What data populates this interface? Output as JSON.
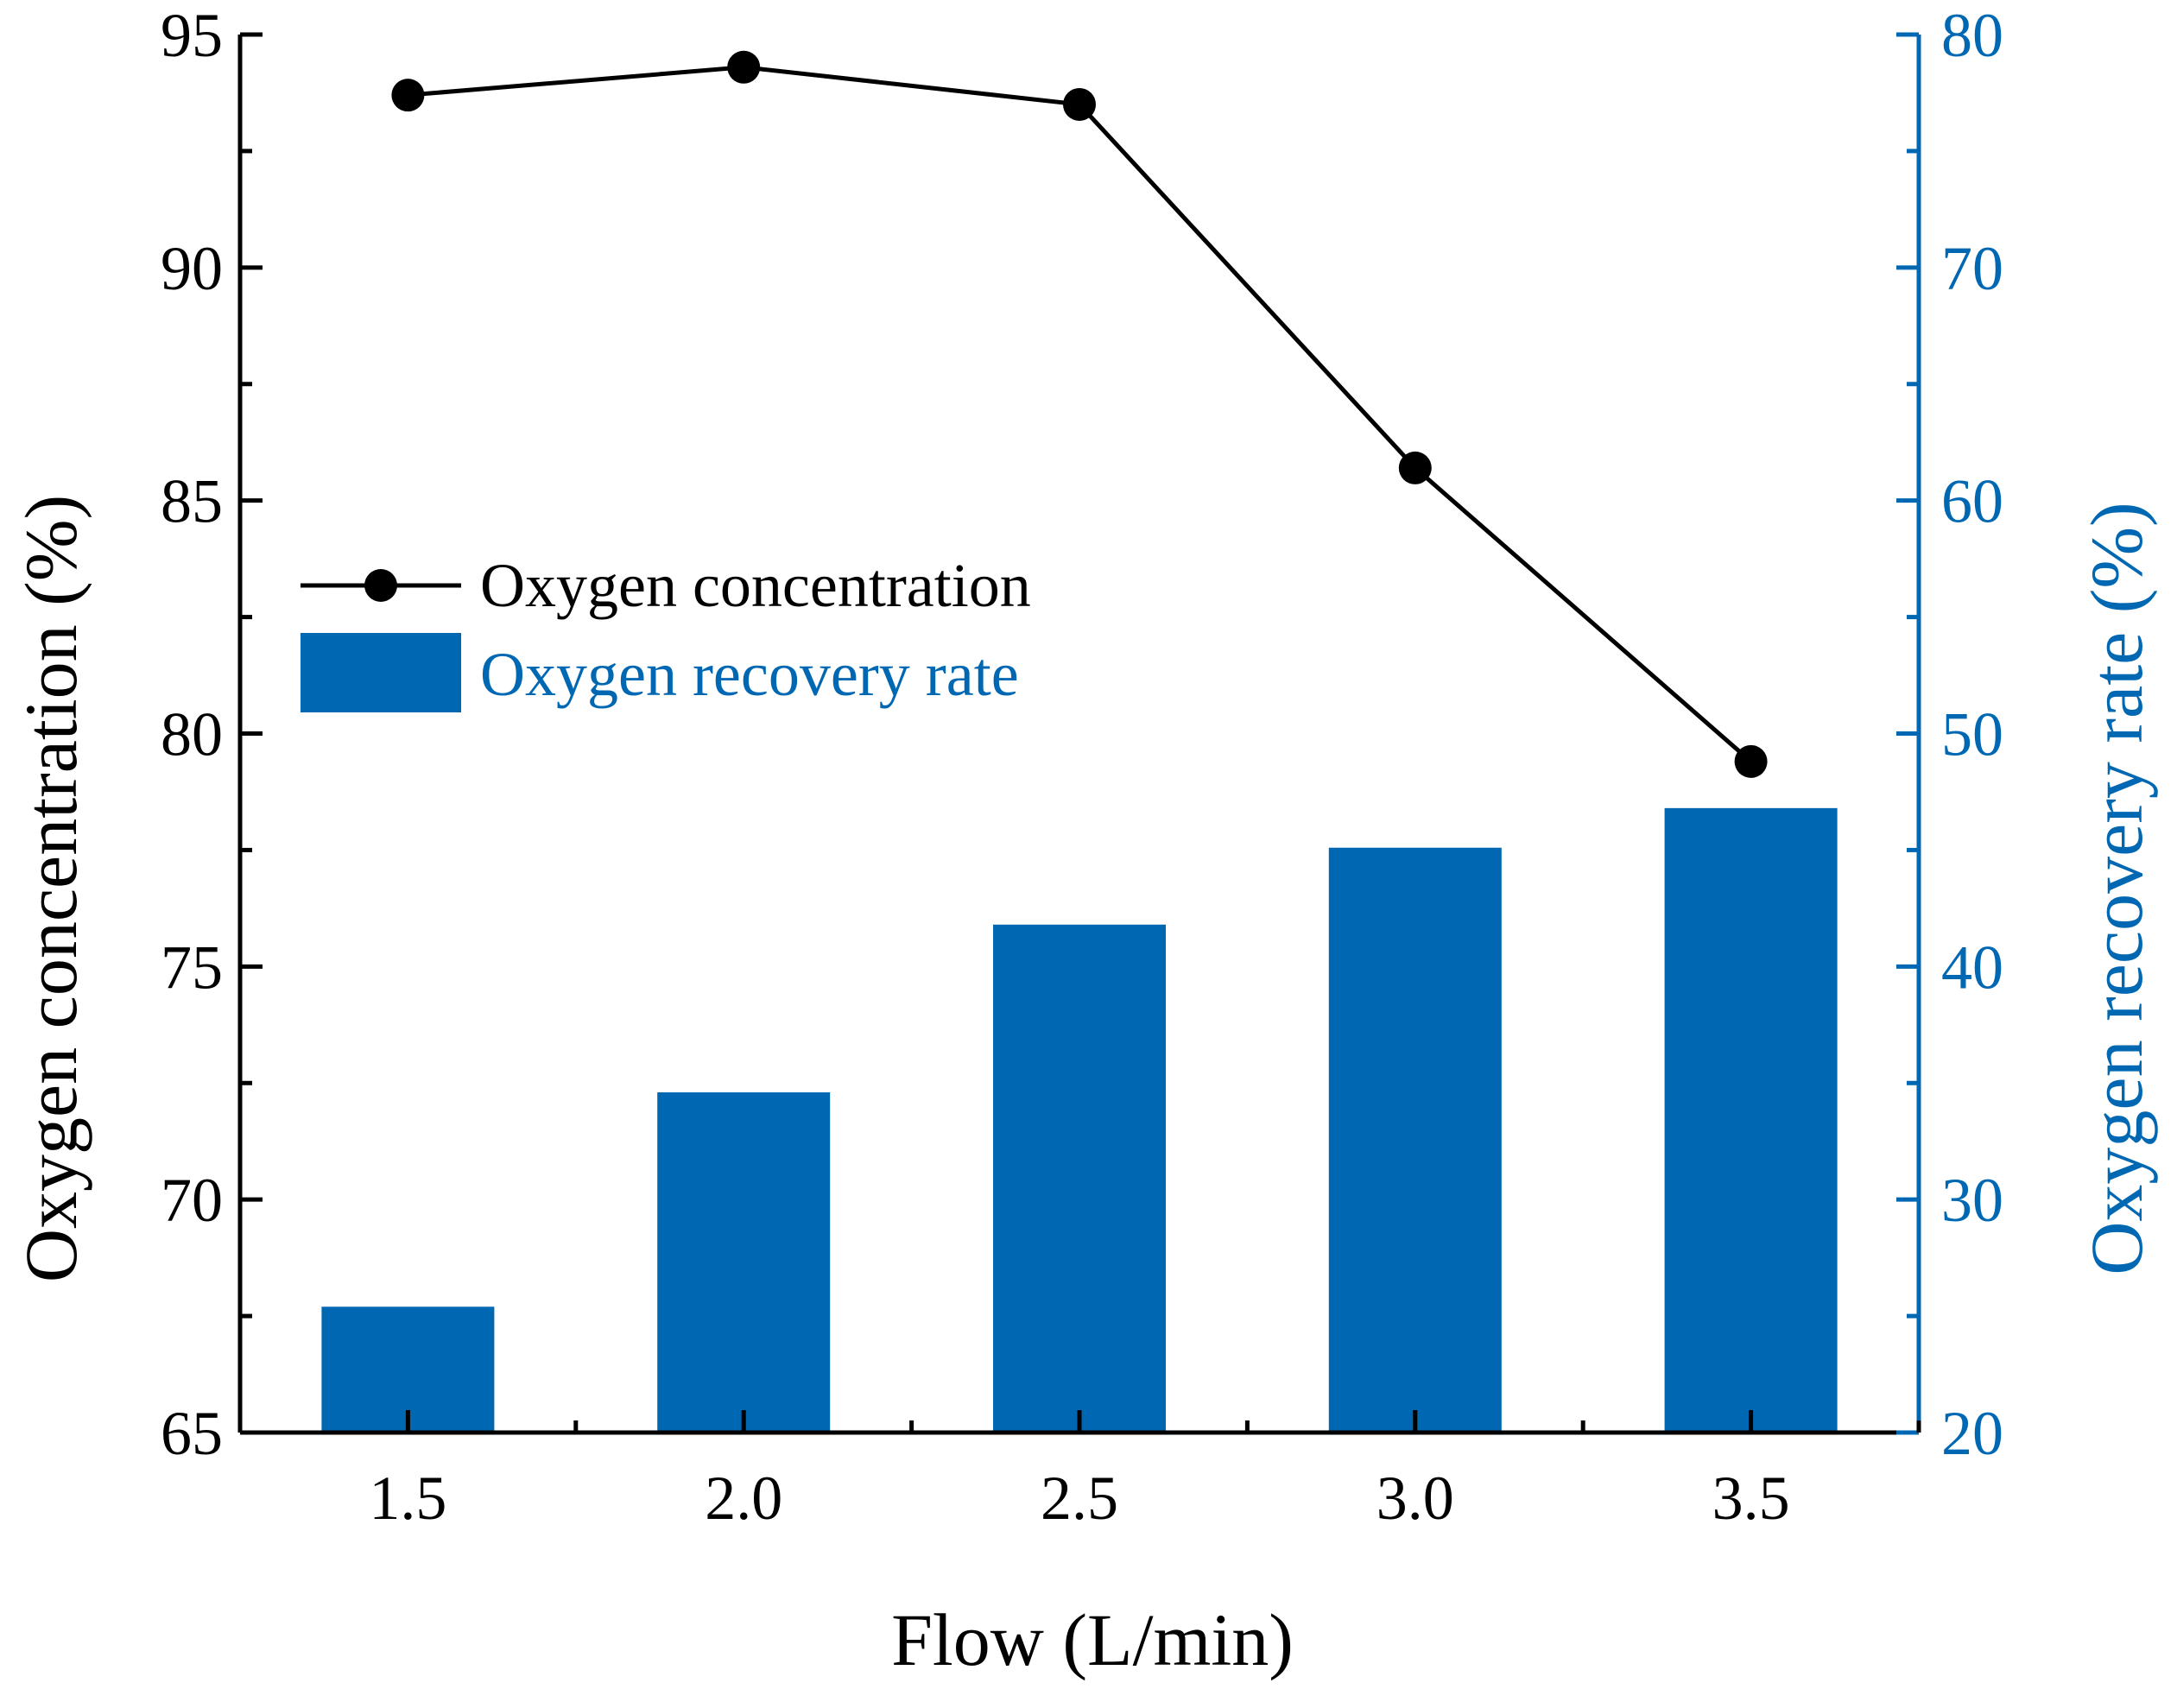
{
  "chart_data": {
    "type": "bar+line",
    "xlabel": "Flow (L/min)",
    "categories": [
      "1.5",
      "2.0",
      "2.5",
      "3.0",
      "3.5"
    ],
    "x_values": [
      1.5,
      2.0,
      2.5,
      3.0,
      3.5
    ],
    "xlim": [
      1.25,
      3.75
    ],
    "left_axis": {
      "label": "Oxygen concentration (%)",
      "ylim": [
        65,
        95
      ],
      "ticks": [
        "65",
        "70",
        "75",
        "80",
        "85",
        "90",
        "95"
      ]
    },
    "right_axis": {
      "label": "Oxygen recovery rate (%)",
      "ylim": [
        20,
        80
      ],
      "ticks": [
        "20",
        "30",
        "40",
        "50",
        "60",
        "70",
        "80"
      ]
    },
    "series": [
      {
        "name": "Oxygen concentration",
        "kind": "line",
        "axis": "left",
        "color": "#000000",
        "values": [
          93.7,
          94.3,
          93.5,
          85.7,
          79.4
        ]
      },
      {
        "name": "Oxygen recovery rate",
        "kind": "bar",
        "axis": "right",
        "color": "#0068B3",
        "values": [
          25.4,
          34.6,
          41.8,
          45.1,
          46.8
        ]
      }
    ],
    "legend_position": "left-middle",
    "grid": false
  },
  "colors": {
    "axis_left": "#000000",
    "axis_right": "#0068B3",
    "bar": "#0068B3",
    "line": "#000000"
  }
}
